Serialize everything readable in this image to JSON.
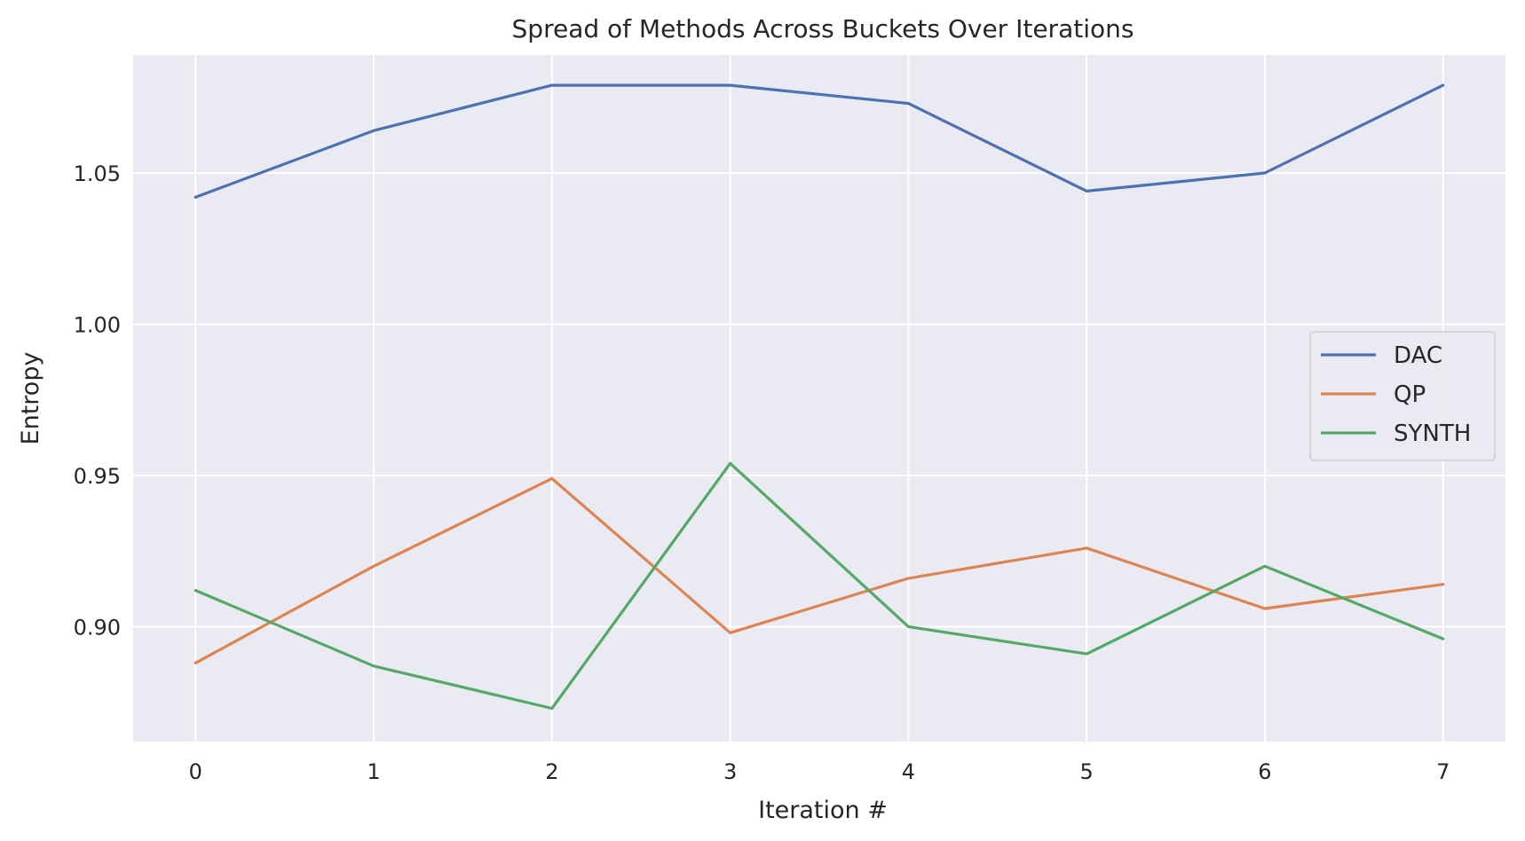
{
  "chart_data": {
    "type": "line",
    "title": "Spread of Methods Across Buckets Over Iterations",
    "xlabel": "Iteration #",
    "ylabel": "Entropy",
    "x": [
      0,
      1,
      2,
      3,
      4,
      5,
      6,
      7
    ],
    "x_ticks": [
      "0",
      "1",
      "2",
      "3",
      "4",
      "5",
      "6",
      "7"
    ],
    "y_ticks": [
      "0.90",
      "0.95",
      "1.00",
      "1.05"
    ],
    "y_tick_values": [
      0.9,
      0.95,
      1.0,
      1.05
    ],
    "xlim": [
      -0.35,
      7.35
    ],
    "ylim": [
      0.862,
      1.089
    ],
    "grid": true,
    "legend_position": "center-right",
    "background": "#eaeaf2",
    "series": [
      {
        "name": "DAC",
        "color": "#4c72b0",
        "values": [
          1.042,
          1.064,
          1.079,
          1.079,
          1.073,
          1.044,
          1.05,
          1.079
        ]
      },
      {
        "name": "QP",
        "color": "#dd8452",
        "values": [
          0.888,
          0.92,
          0.949,
          0.898,
          0.916,
          0.926,
          0.906,
          0.914
        ]
      },
      {
        "name": "SYNTH",
        "color": "#55a868",
        "values": [
          0.912,
          0.887,
          0.873,
          0.954,
          0.9,
          0.891,
          0.92,
          0.896
        ]
      }
    ]
  }
}
